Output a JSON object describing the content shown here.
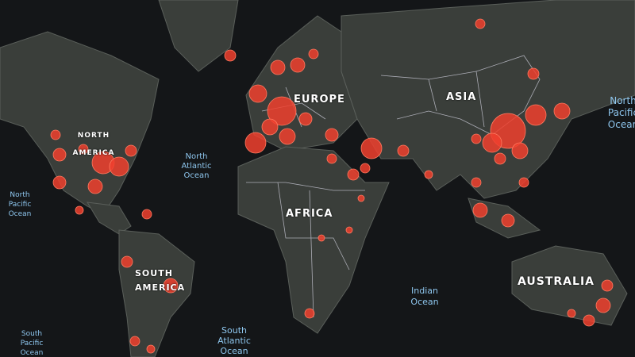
{
  "colors": {
    "ocean": "#141618",
    "land": "#3a3e3a",
    "border": "#c9c9d6",
    "case_marker": "#f0402e"
  },
  "continent_labels": {
    "north_america": "NORTH AMERICA",
    "europe": "EUROPE",
    "asia": "ASIA",
    "africa": "AFRICA",
    "south_america": "SOUTH AMERICA",
    "australia": "AUSTRALIA"
  },
  "ocean_labels": {
    "north_atlantic": "North Atlantic Ocean",
    "north_pacific_west": "North Pacific Ocean",
    "north_pacific_east": "North Pacific Ocean",
    "indian": "Indian Ocean",
    "south_atlantic": "South Atlantic Ocean",
    "south_pacific": "South Pacific Ocean"
  },
  "marker_icon": "red-circle"
}
